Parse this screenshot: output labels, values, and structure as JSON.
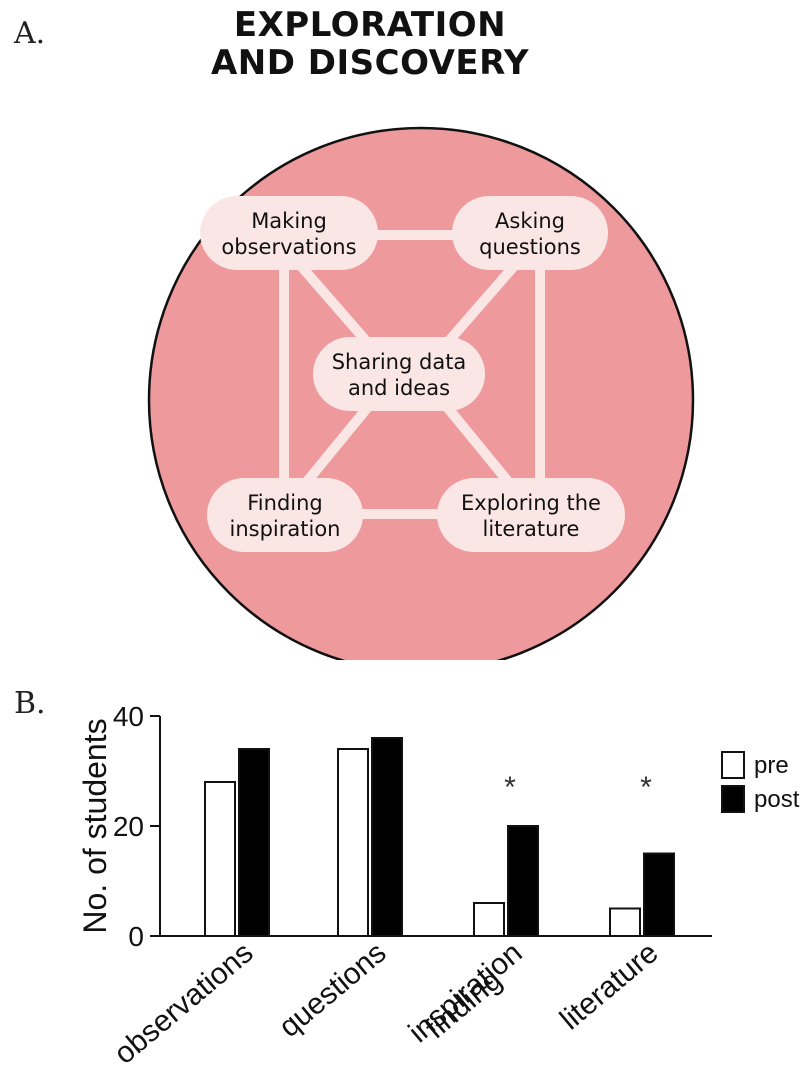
{
  "panel_a": {
    "letter": "A.",
    "title_line1": "EXPLORATION",
    "title_line2": "AND DISCOVERY",
    "nodes": {
      "observations": [
        "Making",
        "observations"
      ],
      "questions": [
        "Asking",
        "questions"
      ],
      "sharing": [
        "Sharing data",
        "and ideas"
      ],
      "inspiration": [
        "Finding",
        "inspiration"
      ],
      "literature": [
        "Exploring the",
        "literature"
      ]
    },
    "colors": {
      "circle": "#ee9a9d",
      "node": "#fbe6e6",
      "line": "#fbe6e6"
    }
  },
  "panel_b": {
    "letter": "B."
  },
  "chart_data": {
    "type": "bar",
    "categories": [
      [
        "observations"
      ],
      [
        "questions"
      ],
      [
        "finding",
        "inspiration"
      ],
      [
        "literature"
      ]
    ],
    "series": [
      {
        "name": "pre",
        "values": [
          28,
          34,
          6,
          5
        ],
        "color": "#ffffff"
      },
      {
        "name": "post",
        "values": [
          34,
          36,
          20,
          15
        ],
        "color": "#000000"
      }
    ],
    "ylabel": "No. of students",
    "ylim": [
      0,
      40
    ],
    "yticks": [
      0,
      20,
      40
    ],
    "annotations": [
      "",
      "",
      "*",
      "*"
    ],
    "legend_position": "right"
  }
}
